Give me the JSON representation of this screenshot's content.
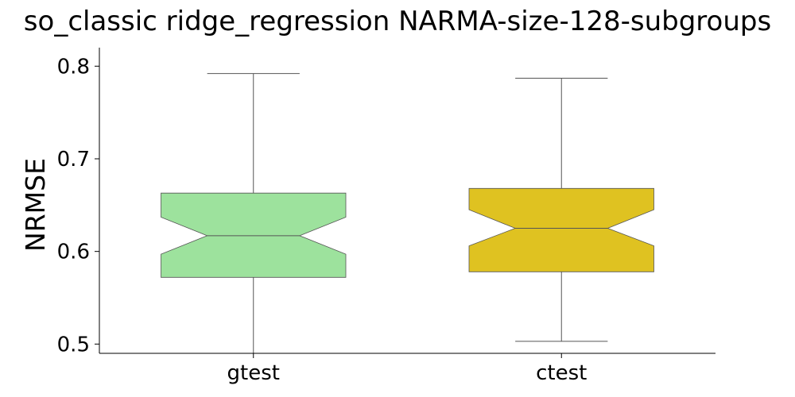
{
  "chart_data": {
    "type": "box",
    "title": "so_classic ridge_regression NARMA-size-128-subgroups",
    "xlabel": "",
    "ylabel": "NRMSE",
    "ylim": [
      0.49,
      0.82
    ],
    "yticks": [
      0.5,
      0.6,
      0.7,
      0.8
    ],
    "ytick_labels": [
      "0.5",
      "0.6",
      "0.7",
      "0.8"
    ],
    "notched": true,
    "categories": [
      "gtest",
      "ctest"
    ],
    "boxes": [
      {
        "category": "gtest",
        "color": "#9de29d",
        "whisker_low": 0.49,
        "q1": 0.572,
        "notch_low": 0.597,
        "median": 0.617,
        "notch_high": 0.637,
        "q3": 0.663,
        "whisker_high": 0.792
      },
      {
        "category": "ctest",
        "color": "#dfc221",
        "whisker_low": 0.503,
        "q1": 0.578,
        "notch_low": 0.606,
        "median": 0.625,
        "notch_high": 0.645,
        "q3": 0.668,
        "whisker_high": 0.787
      }
    ]
  }
}
